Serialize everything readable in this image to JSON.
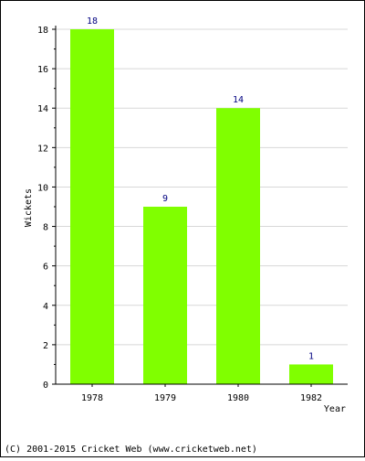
{
  "chart_data": {
    "type": "bar",
    "categories": [
      "1978",
      "1979",
      "1980",
      "1982"
    ],
    "values": [
      18,
      9,
      14,
      1
    ],
    "data_labels": [
      "18",
      "9",
      "14",
      "1"
    ],
    "xlabel": "Year",
    "ylabel": "Wickets",
    "ylim": [
      0,
      18
    ],
    "yticks": [
      0,
      2,
      4,
      6,
      8,
      10,
      12,
      14,
      16,
      18
    ],
    "grid": true,
    "legend": "none",
    "colors": {
      "bar": "#80ff00",
      "data_label": "#000080",
      "grid": "#d8d8d8",
      "axis": "#000000"
    }
  },
  "footer": {
    "copyright": "(C) 2001-2015 Cricket Web (www.cricketweb.net)"
  }
}
